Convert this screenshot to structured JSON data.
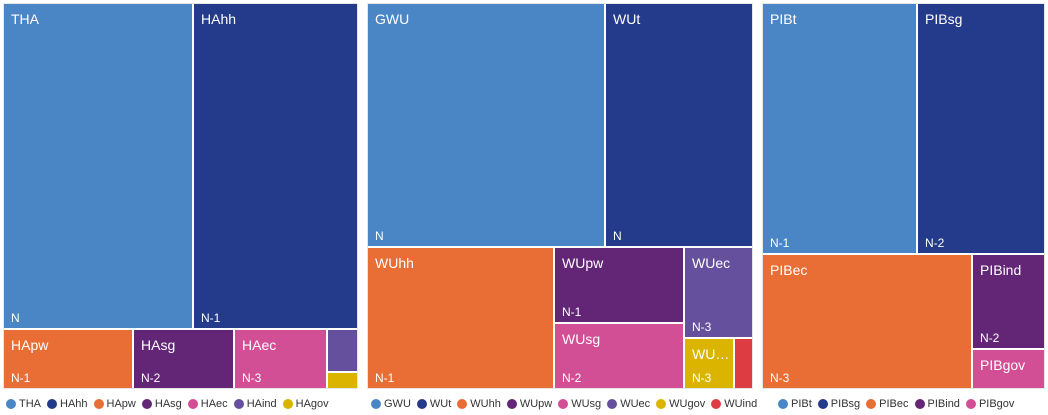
{
  "colors": {
    "blue": "#4a86c6",
    "navy": "#243a8a",
    "orange": "#e86e35",
    "purple": "#632676",
    "pink": "#d24f96",
    "violet": "#65509e",
    "yellow": "#dbb400",
    "red": "#dd3d42"
  },
  "chart_data": [
    {
      "type": "treemap",
      "items": [
        {
          "name": "THA",
          "group": "N",
          "color": "#4a86c6"
        },
        {
          "name": "HAhh",
          "group": "N-1",
          "color": "#243a8a"
        },
        {
          "name": "HApw",
          "group": "N-1",
          "color": "#e86e35"
        },
        {
          "name": "HAsg",
          "group": "N-2",
          "color": "#632676"
        },
        {
          "name": "HAec",
          "group": "N-3",
          "color": "#d24f96"
        },
        {
          "name": "HAind",
          "group": "",
          "color": "#65509e"
        },
        {
          "name": "HAgov",
          "group": "",
          "color": "#dbb400"
        }
      ],
      "legend": [
        "THA",
        "HAhh",
        "HApw",
        "HAsg",
        "HAec",
        "HAind",
        "HAgov"
      ]
    },
    {
      "type": "treemap",
      "items": [
        {
          "name": "GWU",
          "label": "GWU",
          "group": "N",
          "color": "#4a86c6"
        },
        {
          "name": "WUt",
          "label": "WUt",
          "group": "N",
          "color": "#243a8a"
        },
        {
          "name": "WUhh",
          "label": "WUhh",
          "group": "N-1",
          "color": "#e86e35"
        },
        {
          "name": "WUpw",
          "label": "WUpw",
          "group": "N-1",
          "color": "#632676"
        },
        {
          "name": "WUsg",
          "label": "WUsg",
          "group": "N-2",
          "color": "#d24f96"
        },
        {
          "name": "WUec",
          "label": "WUec",
          "group": "N-3",
          "color": "#65509e"
        },
        {
          "name": "WUgov",
          "label": "WU…",
          "group": "N-3",
          "color": "#dbb400"
        },
        {
          "name": "WUind",
          "label": "",
          "group": "",
          "color": "#dd3d42"
        }
      ],
      "legend": [
        "GWU",
        "WUt",
        "WUhh",
        "WUpw",
        "WUsg",
        "WUec",
        "WUgov",
        "WUind"
      ]
    },
    {
      "type": "treemap",
      "items": [
        {
          "name": "PIBt",
          "group": "N-1",
          "color": "#4a86c6"
        },
        {
          "name": "PIBsg",
          "group": "N-2",
          "color": "#243a8a"
        },
        {
          "name": "PIBec",
          "group": "N-3",
          "color": "#e86e35"
        },
        {
          "name": "PIBind",
          "group": "N-2",
          "color": "#632676"
        },
        {
          "name": "PIBgov",
          "group": "",
          "color": "#d24f96"
        }
      ],
      "legend": [
        "PIBt",
        "PIBsg",
        "PIBec",
        "PIBind",
        "PIBgov"
      ]
    }
  ]
}
